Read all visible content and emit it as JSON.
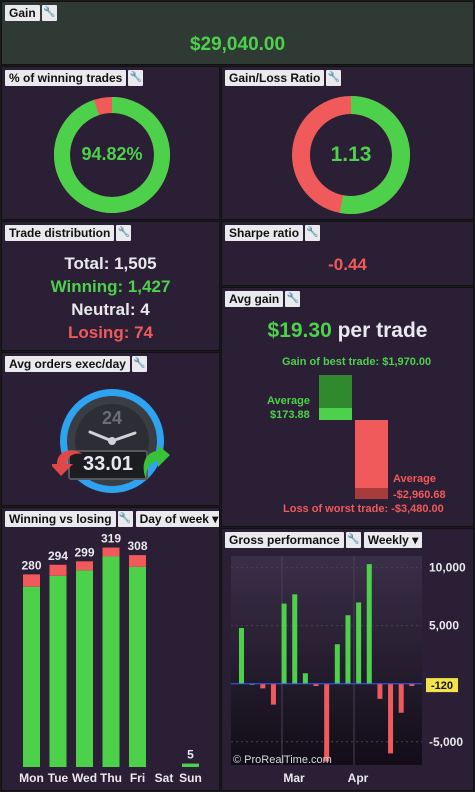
{
  "colors": {
    "green": "#4dd14b",
    "red": "#f05a5a",
    "bg": "#2a1f35",
    "label_bg": "#e9e9ee",
    "accent_blue": "#2ea3f2"
  },
  "gain": {
    "title": "Gain",
    "value": "$29,040.00"
  },
  "winning_pct": {
    "title": "% of winning trades",
    "value": "94.82%",
    "fraction": 0.9482
  },
  "gain_loss_ratio": {
    "title": "Gain/Loss Ratio",
    "value": "1.13",
    "green_fraction": 0.53
  },
  "trade_distribution": {
    "title": "Trade distribution",
    "total": "Total: 1,505",
    "winning": "Winning: 1,427",
    "neutral": "Neutral: 4",
    "losing": "Losing: 74"
  },
  "sharpe": {
    "title": "Sharpe ratio",
    "value": "-0.44"
  },
  "avg_gain": {
    "title": "Avg gain",
    "headline_value": "$19.30",
    "headline_suffix": "per trade",
    "best_trade": "Gain of best trade: $1,970.00",
    "avg_win_label": "Average",
    "avg_win_value": "$173.88",
    "avg_loss_label": "Average",
    "avg_loss_value": "-$2,960.68",
    "worst_trade": "Loss of worst trade: -$3,480.00"
  },
  "avg_orders": {
    "title": "Avg orders exec/day",
    "value": "33.01",
    "dial_number": "24"
  },
  "winning_vs_losing": {
    "title": "Winning vs losing",
    "period": "Day of week"
  },
  "gross_performance": {
    "title": "Gross performance",
    "period": "Weekly",
    "current_value": "-120",
    "watermark": "© ProRealTime.com"
  },
  "chart_data": [
    {
      "type": "bar",
      "title": "Winning vs losing",
      "categories": [
        "Mon",
        "Tue",
        "Wed",
        "Thu",
        "Fri",
        "Sat",
        "Sun"
      ],
      "totals": [
        280,
        294,
        299,
        319,
        308,
        0,
        5
      ],
      "series": [
        {
          "name": "Winning",
          "values": [
            262,
            278,
            286,
            306,
            291,
            0,
            5
          ]
        },
        {
          "name": "Losing",
          "values": [
            18,
            16,
            13,
            13,
            17,
            0,
            0
          ]
        }
      ],
      "ylim": [
        0,
        330
      ]
    },
    {
      "type": "bar",
      "title": "Gross performance",
      "x_tick_labels": [
        "Mar",
        "Apr"
      ],
      "y_tick_labels": [
        "10,000",
        "5,000",
        "0",
        "-5,000"
      ],
      "ylim": [
        -7000,
        11000
      ],
      "values": [
        4800,
        0,
        -400,
        -1800,
        6900,
        7700,
        900,
        -200,
        -6700,
        3400,
        5900,
        7000,
        10300,
        -1300,
        -6000,
        -2500,
        -200
      ]
    }
  ]
}
